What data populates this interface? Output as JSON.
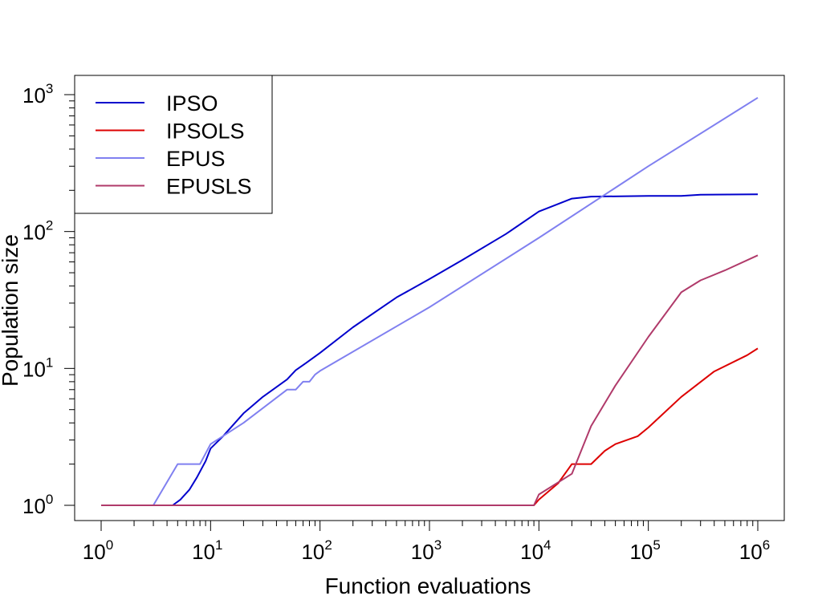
{
  "chart_data": {
    "type": "line",
    "xlabel": "Function evaluations",
    "ylabel": "Population size",
    "x_scale": "log",
    "y_scale": "log",
    "xlim": [
      1,
      1000000
    ],
    "ylim": [
      1,
      1000
    ],
    "x_ticks": [
      {
        "base": "10",
        "exp": "0",
        "value": 1
      },
      {
        "base": "10",
        "exp": "1",
        "value": 10
      },
      {
        "base": "10",
        "exp": "2",
        "value": 100
      },
      {
        "base": "10",
        "exp": "3",
        "value": 1000
      },
      {
        "base": "10",
        "exp": "4",
        "value": 10000
      },
      {
        "base": "10",
        "exp": "5",
        "value": 100000
      },
      {
        "base": "10",
        "exp": "6",
        "value": 1000000
      }
    ],
    "y_ticks": [
      {
        "base": "10",
        "exp": "0",
        "value": 1
      },
      {
        "base": "10",
        "exp": "1",
        "value": 10
      },
      {
        "base": "10",
        "exp": "2",
        "value": 100
      },
      {
        "base": "10",
        "exp": "3",
        "value": 1000
      }
    ],
    "legend_position": "top-left",
    "grid": false,
    "series": [
      {
        "name": "IPSO",
        "color": "#0000cc",
        "points": [
          [
            1,
            1
          ],
          [
            4.5,
            1
          ],
          [
            5.3,
            1.1
          ],
          [
            6.4,
            1.3
          ],
          [
            7.5,
            1.6
          ],
          [
            9,
            2.1
          ],
          [
            10,
            2.6
          ],
          [
            13,
            3.2
          ],
          [
            20,
            4.7
          ],
          [
            30,
            6.2
          ],
          [
            50,
            8.3
          ],
          [
            60,
            9.7
          ],
          [
            75,
            11
          ],
          [
            100,
            13
          ],
          [
            200,
            20
          ],
          [
            500,
            33
          ],
          [
            1000,
            45
          ],
          [
            2000,
            62
          ],
          [
            5000,
            96
          ],
          [
            10000,
            140
          ],
          [
            20000,
            174
          ],
          [
            30000,
            180
          ],
          [
            100000,
            182
          ],
          [
            200000,
            182
          ],
          [
            300000,
            186
          ],
          [
            1000000,
            187
          ]
        ]
      },
      {
        "name": "IPSOLS",
        "color": "#dd0000",
        "points": [
          [
            1,
            1
          ],
          [
            9000,
            1
          ],
          [
            10000,
            1.1
          ],
          [
            15000,
            1.45
          ],
          [
            20000,
            2
          ],
          [
            30000,
            2
          ],
          [
            40000,
            2.5
          ],
          [
            50000,
            2.8
          ],
          [
            80000,
            3.2
          ],
          [
            100000,
            3.7
          ],
          [
            200000,
            6.2
          ],
          [
            400000,
            9.5
          ],
          [
            800000,
            12.5
          ],
          [
            1000000,
            14
          ]
        ]
      },
      {
        "name": "EPUS",
        "color": "#8080f0",
        "points": [
          [
            1,
            1
          ],
          [
            3,
            1
          ],
          [
            5,
            2
          ],
          [
            8,
            2
          ],
          [
            10,
            2.8
          ],
          [
            20,
            4
          ],
          [
            50,
            7
          ],
          [
            60,
            7
          ],
          [
            70,
            8
          ],
          [
            80,
            8
          ],
          [
            90,
            9
          ],
          [
            100,
            9.6
          ],
          [
            1000,
            28
          ],
          [
            10000,
            90
          ],
          [
            100000,
            300
          ],
          [
            1000000,
            950
          ]
        ]
      },
      {
        "name": "EPUSLS",
        "color": "#b03a6a",
        "points": [
          [
            1,
            1
          ],
          [
            9000,
            1
          ],
          [
            10000,
            1.2
          ],
          [
            20000,
            1.7
          ],
          [
            30000,
            3.8
          ],
          [
            50000,
            7.5
          ],
          [
            100000,
            17
          ],
          [
            200000,
            36
          ],
          [
            300000,
            44
          ],
          [
            500000,
            52
          ],
          [
            1000000,
            67
          ]
        ]
      }
    ]
  }
}
